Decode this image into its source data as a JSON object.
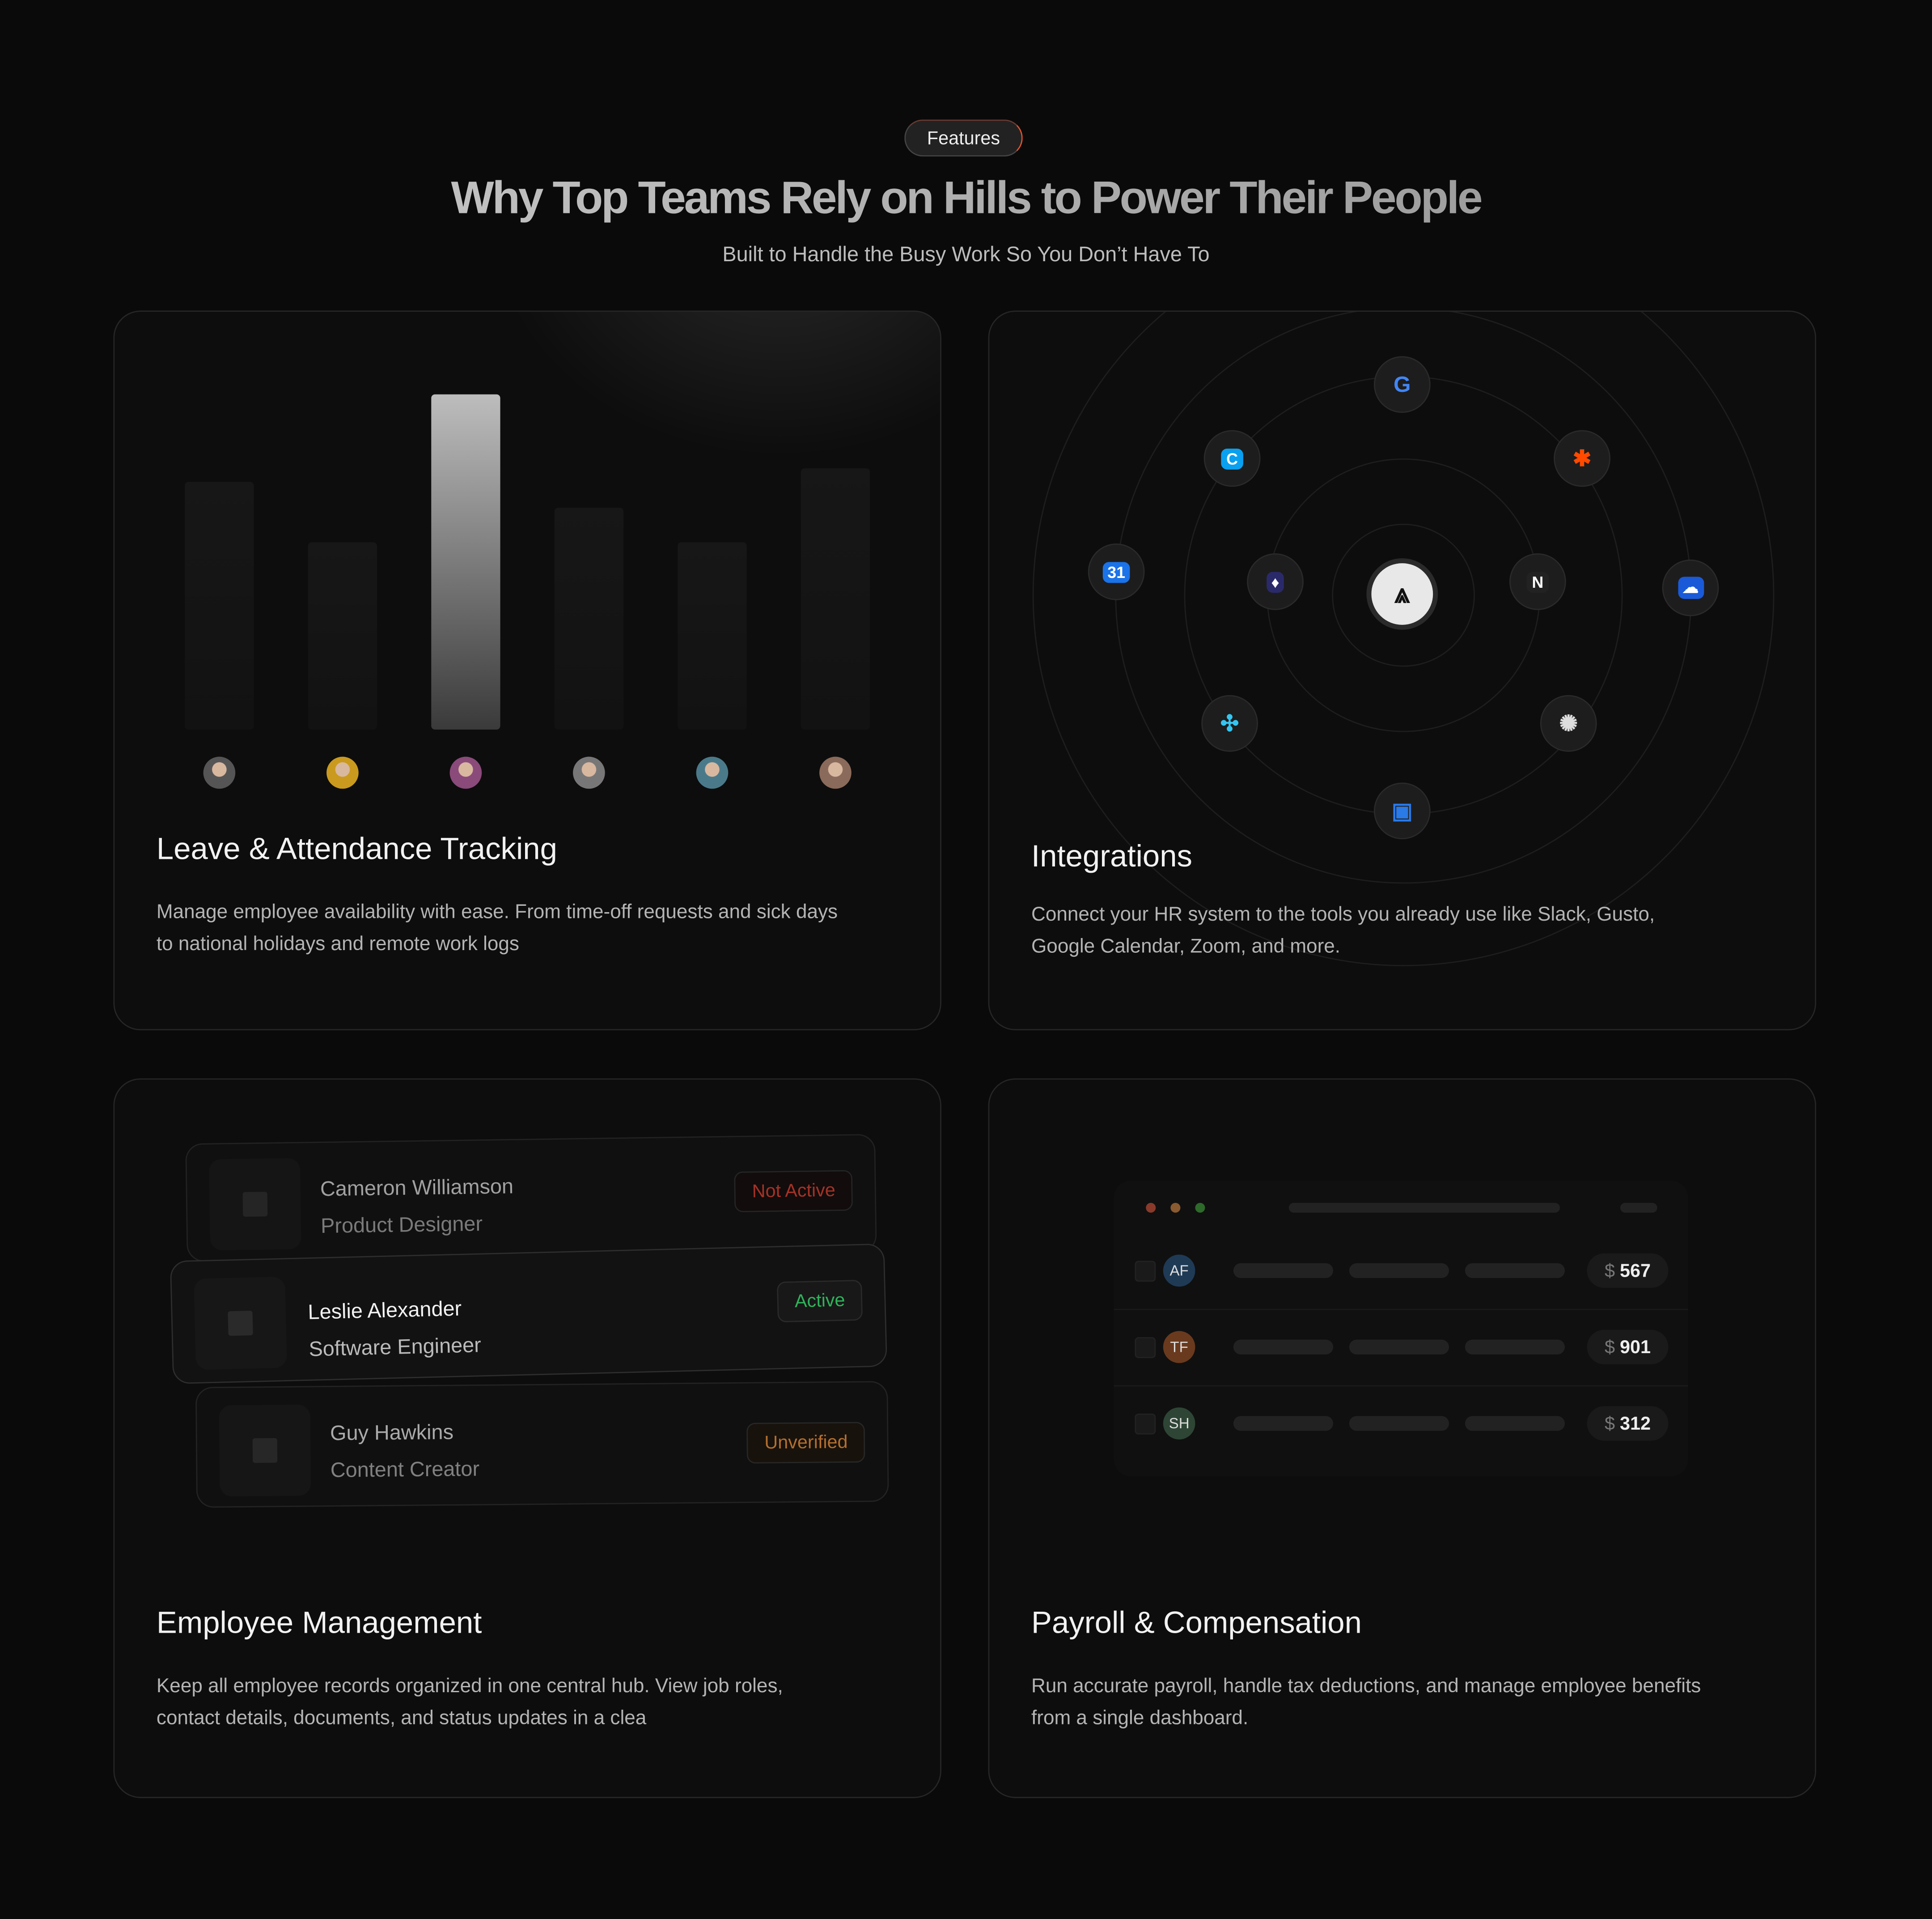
{
  "header": {
    "badge": "Features",
    "title": "Why Top Teams Rely on Hills to Power Their People",
    "subtitle": "Built to Handle the Busy Work So You Don’t Have To"
  },
  "cards": [
    {
      "title": "Leave & Attendance Tracking",
      "description_lines": [
        "Manage employee availability with ease. From time-off requests and sick days",
        "to national holidays and remote work logs"
      ],
      "bars": [
        {
          "level": 0.74
        },
        {
          "level": 0.56
        },
        {
          "level": 1.0,
          "highlighted": true
        },
        {
          "level": 0.66
        },
        {
          "level": 0.56
        },
        {
          "level": 0.78
        }
      ],
      "avatar_colors": [
        "#555",
        "#c99a1e",
        "#8a4a7a",
        "#777",
        "#4a7a8a",
        "#8a6a5a"
      ]
    },
    {
      "title": "Integrations",
      "description_lines": [
        "Connect your HR system to the tools you already use like Slack, Gusto,",
        "Google Calendar, Zoom, and more."
      ],
      "icons": [
        "hills-logo-icon",
        "google-icon",
        "crowdstrike-icon",
        "zapier-icon",
        "google-calendar-icon",
        "cloud-icon",
        "lightbulb-icon",
        "notion-icon",
        "slack-icon",
        "loader-icon",
        "trello-icon"
      ]
    },
    {
      "title": "Employee Management",
      "description_lines": [
        "Keep all employee records organized in one central hub. View job roles,",
        "contact details, documents, and status updates in a clea"
      ],
      "employees": [
        {
          "name": "Cameron Williamson",
          "role": "Product Designer",
          "status": "Not Active",
          "status_color": "#c0392b"
        },
        {
          "name": "Leslie Alexander",
          "role": "Software Engineer",
          "status": "Active",
          "status_color": "#2fb35a"
        },
        {
          "name": "Guy Hawkins",
          "role": "Content Creator",
          "status": "Unverified",
          "status_color": "#c77a32"
        }
      ]
    },
    {
      "title": "Payroll & Compensation",
      "description_lines": [
        "Run accurate payroll, handle tax deductions, and manage employee benefits",
        "from a single dashboard."
      ],
      "currency": "$",
      "rows": [
        {
          "initials": "AF",
          "color": "#1f3a55",
          "amount": "567"
        },
        {
          "initials": "TF",
          "color": "#6a3a1e",
          "amount": "901"
        },
        {
          "initials": "SH",
          "color": "#2e4535",
          "amount": "312"
        }
      ],
      "window_dots": [
        "#8a3a2a",
        "#8a5a30",
        "#2e6a2a"
      ]
    }
  ]
}
